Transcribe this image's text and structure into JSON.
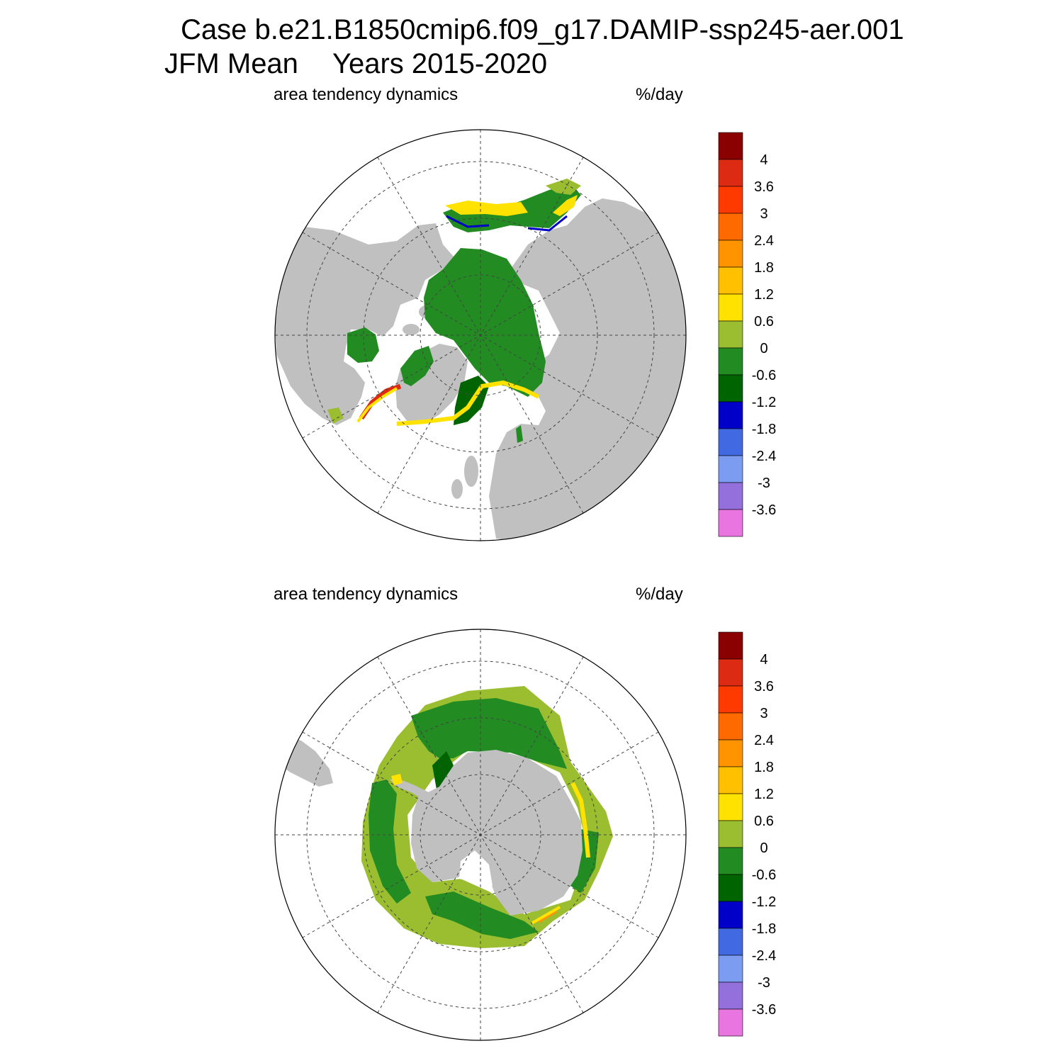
{
  "title": {
    "line1": "Case b.e21.B1850cmip6.f09_g17.DAMIP-ssp245-aer.001",
    "line2_left": "JFM Mean",
    "line2_right": "Years 2015-2020"
  },
  "panels": [
    {
      "hemisphere": "north",
      "left_label": "area tendency dynamics",
      "right_label": "%/day"
    },
    {
      "hemisphere": "south",
      "left_label": "area tendency dynamics",
      "right_label": "%/day"
    }
  ],
  "colorbar": {
    "colors": [
      "#8b0000",
      "#dc2a13",
      "#ff3a00",
      "#ff6a00",
      "#ff9400",
      "#ffc000",
      "#ffe200",
      "#9bbe30",
      "#228b22",
      "#006400",
      "#0000c8",
      "#4169e1",
      "#7b9cf0",
      "#9370db",
      "#e875e0"
    ],
    "labels": [
      "4",
      "3.6",
      "3",
      "2.4",
      "1.8",
      "1.2",
      "0.6",
      "0",
      "-0.6",
      "-1.2",
      "-1.8",
      "-2.4",
      "-3",
      "-3.6"
    ]
  },
  "colors": {
    "land": "#c0c0c0",
    "ocean": "#ffffff"
  }
}
